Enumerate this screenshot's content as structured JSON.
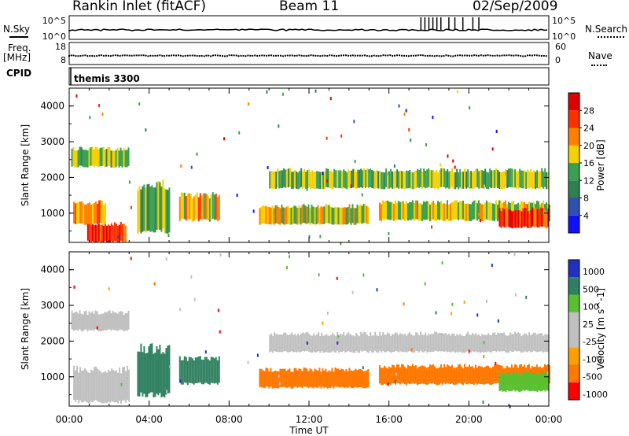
{
  "header": {
    "station": "Rankin Inlet (fitACF)",
    "beam": "Beam 11",
    "date": "02/Sep/2009"
  },
  "panels": {
    "nsky_label": "N.Sky",
    "nsearch_label": "N.Search",
    "freq_label_top": "Freq.",
    "freq_label_unit": "[MHz]",
    "nave_label": "Nave",
    "cpid_label": "CPID",
    "cpid_value": "themis 3300",
    "noise_ticks_left": [
      "10^5",
      "10^0"
    ],
    "noise_ticks_right": [
      "10^5",
      "10^0"
    ],
    "freq_ticks_left": [
      "18",
      "8"
    ],
    "nave_ticks_right": [
      "60",
      "0"
    ]
  },
  "colors": {
    "power": [
      "#1010ff",
      "#3050b0",
      "#2f8050",
      "#3aa050",
      "#f5d000",
      "#ff8000",
      "#ff3000",
      "#e00000"
    ],
    "velocity": [
      "#ff0000",
      "#ff7700",
      "#ffa000",
      "#c0c0c0",
      "#c0c0c0",
      "#5ac030",
      "#2f8060",
      "#2030c0"
    ]
  },
  "chart_data": [
    {
      "type": "heatmap",
      "title": "Power",
      "xlabel": "Time UT",
      "ylabel": "Slant Range [km]",
      "x_ticks": [
        "00:00",
        "04:00",
        "08:00",
        "12:00",
        "16:00",
        "20:00",
        "00:00"
      ],
      "y_ticks": [
        1000,
        2000,
        3000,
        4000
      ],
      "ylim": [
        180,
        4500
      ],
      "colorbar": {
        "label": "Power [dB]",
        "ticks": [
          4,
          8,
          12,
          16,
          20,
          24,
          28
        ],
        "range": [
          0,
          32
        ]
      },
      "regions": [
        {
          "t": [
            0.9,
            2.8
          ],
          "r": [
            200,
            700
          ],
          "value": 27
        },
        {
          "t": [
            0.2,
            1.8
          ],
          "r": [
            700,
            1300
          ],
          "value": 22
        },
        {
          "t": [
            0.1,
            3.0
          ],
          "r": [
            2300,
            2800
          ],
          "value": 15
        },
        {
          "t": [
            3.4,
            5.0
          ],
          "r": [
            500,
            1800
          ],
          "value": 14
        },
        {
          "t": [
            5.5,
            7.5
          ],
          "r": [
            800,
            1500
          ],
          "value": 20
        },
        {
          "t": [
            9.5,
            15.0
          ],
          "r": [
            700,
            1200
          ],
          "value": 18
        },
        {
          "t": [
            10.0,
            24.0
          ],
          "r": [
            1700,
            2200
          ],
          "value": 15
        },
        {
          "t": [
            15.5,
            24.0
          ],
          "r": [
            800,
            1300
          ],
          "value": 17
        },
        {
          "t": [
            21.5,
            24.0
          ],
          "r": [
            600,
            1100
          ],
          "value": 26
        }
      ]
    },
    {
      "type": "heatmap",
      "title": "Velocity",
      "xlabel": "Time UT",
      "ylabel": "Slant Range [km]",
      "x_ticks": [
        "00:00",
        "04:00",
        "08:00",
        "12:00",
        "16:00",
        "20:00",
        "00:00"
      ],
      "y_ticks": [
        1000,
        2000,
        3000,
        4000
      ],
      "ylim": [
        180,
        4500
      ],
      "colorbar": {
        "label": "Velocity [m s^-1]",
        "ticks": [
          1000,
          500,
          100,
          25,
          -25,
          -100,
          -500,
          -1000
        ]
      },
      "regions": [
        {
          "t": [
            0.2,
            3.0
          ],
          "r": [
            300,
            1200
          ],
          "value": 0
        },
        {
          "t": [
            0.1,
            3.0
          ],
          "r": [
            2300,
            2800
          ],
          "value": 0
        },
        {
          "t": [
            3.4,
            5.0
          ],
          "r": [
            500,
            1800
          ],
          "value": 200
        },
        {
          "t": [
            5.5,
            7.5
          ],
          "r": [
            800,
            1500
          ],
          "value": 300
        },
        {
          "t": [
            9.5,
            15.0
          ],
          "r": [
            700,
            1200
          ],
          "value": -200
        },
        {
          "t": [
            10.0,
            24.0
          ],
          "r": [
            1700,
            2200
          ],
          "value": 0
        },
        {
          "t": [
            15.5,
            24.0
          ],
          "r": [
            800,
            1300
          ],
          "value": -150
        },
        {
          "t": [
            21.5,
            24.0
          ],
          "r": [
            600,
            1100
          ],
          "value": 50
        }
      ]
    }
  ]
}
